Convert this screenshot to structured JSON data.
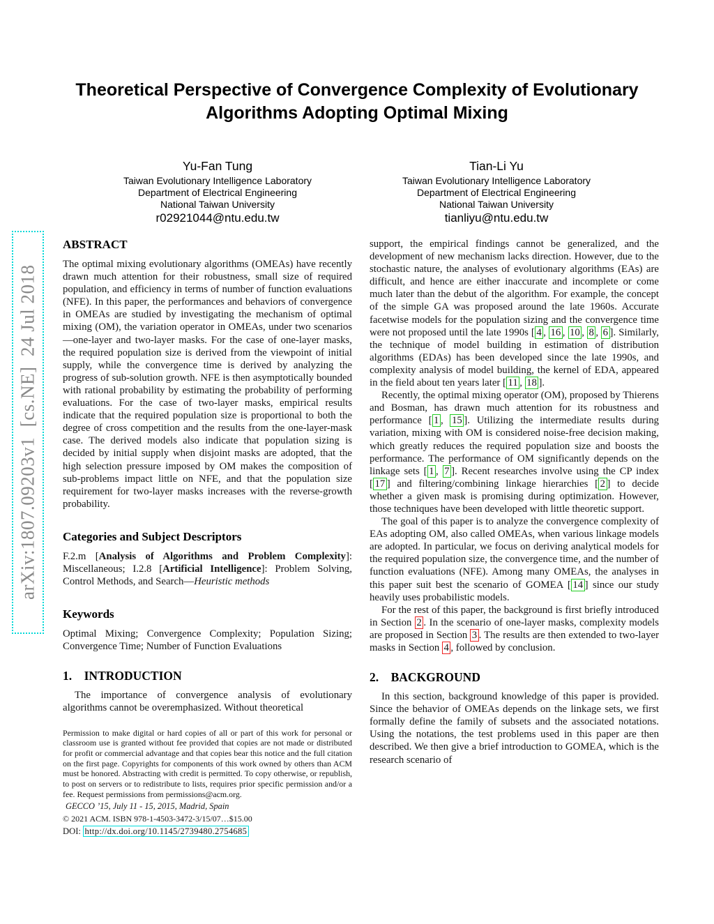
{
  "watermark": {
    "text": "arXiv:1807.09203v1  [cs.NE]  24 Jul 2018"
  },
  "title": "Theoretical Perspective of Convergence Complexity of Evolutionary Algorithms Adopting Optimal Mixing",
  "authors": [
    {
      "name": "Yu-Fan Tung",
      "affil1": "Taiwan Evolutionary Intelligence Laboratory",
      "affil2": "Department of Electrical Engineering",
      "affil3": "National Taiwan University",
      "email": "r02921044@ntu.edu.tw"
    },
    {
      "name": "Tian-Li Yu",
      "affil1": "Taiwan Evolutionary Intelligence Laboratory",
      "affil2": "Department of Electrical Engineering",
      "affil3": "National Taiwan University",
      "email": "tianliyu@ntu.edu.tw"
    }
  ],
  "left": {
    "abstract_heading": "ABSTRACT",
    "abstract": "The optimal mixing evolutionary algorithms (OMEAs) have recently drawn much attention for their robustness, small size of required population, and efficiency in terms of number of function evaluations (NFE). In this paper, the performances and behaviors of convergence in OMEAs are studied by investigating the mechanism of optimal mixing (OM), the variation operator in OMEAs, under two scenarios—one-layer and two-layer masks. For the case of one-layer masks, the required population size is derived from the viewpoint of initial supply, while the convergence time is derived by analyzing the progress of sub-solution growth. NFE is then asymptotically bounded with rational probability by estimating the probability of performing evaluations. For the case of two-layer masks, empirical results indicate that the required population size is proportional to both the degree of cross competition and the results from the one-layer-mask case. The derived models also indicate that population sizing is decided by initial supply when disjoint masks are adopted, that the high selection pressure imposed by OM makes the composition of sub-problems impact little on NFE, and that the population size requirement for two-layer masks increases with the reverse-growth probability.",
    "categories_heading": "Categories and Subject Descriptors",
    "categories": [
      {
        "t": "F.2.m ["
      },
      {
        "t": "Analysis of Algorithms and Problem Complexity",
        "s": "b"
      },
      {
        "t": "]: Miscellaneous; I.2.8 ["
      },
      {
        "t": "Artificial Intelligence",
        "s": "b"
      },
      {
        "t": "]: Problem Solving, Control Methods, and Search—"
      },
      {
        "t": "Heuristic methods",
        "s": "i"
      }
    ],
    "keywords_heading": "Keywords",
    "keywords": "Optimal Mixing; Convergence Complexity; Population Sizing; Convergence Time; Number of Function Evaluations",
    "intro_heading": "1.  INTRODUCTION",
    "intro_par": "The importance of convergence analysis of evolutionary algorithms cannot be overemphasized. Without theoretical"
  },
  "footnote": {
    "permission": "Permission to make digital or hard copies of all or part of this work for personal or classroom use is granted without fee provided that copies are not made or distributed for profit or commercial advantage and that copies bear this notice and the full citation on the first page. Copyrights for components of this work owned by others than ACM must be honored. Abstracting with credit is permitted. To copy otherwise, or republish, to post on servers or to redistribute to lists, requires prior specific permission and/or a fee. Request permissions from permissions@acm.org.",
    "conference": "GECCO ’15, July 11 - 15, 2015, Madrid, Spain",
    "copyright": "© 2021 ACM. ISBN 978-1-4503-3472-3/15/07…$15.00",
    "doi": [
      {
        "t": "DOI: "
      },
      {
        "t": "http://dx.doi.org/10.1145/2739480.2754685",
        "s": "url"
      }
    ]
  },
  "right": {
    "par1": [
      {
        "t": "support, the empirical findings cannot be generalized, and the development of new mechanism lacks direction. However, due to the stochastic nature, the analyses of evolutionary algorithms (EAs) are difficult, and hence are either inaccurate and incomplete or come much later than the debut of the algorithm. For example, the concept of the simple GA was proposed around the late 1960s. Accurate facetwise models for the population sizing and the convergence time were not proposed until the late 1990s ["
      },
      {
        "t": "4",
        "s": "cite"
      },
      {
        "t": ", "
      },
      {
        "t": "16",
        "s": "cite"
      },
      {
        "t": ", "
      },
      {
        "t": "10",
        "s": "cite"
      },
      {
        "t": ", "
      },
      {
        "t": "8",
        "s": "cite"
      },
      {
        "t": ", "
      },
      {
        "t": "6",
        "s": "cite"
      },
      {
        "t": "]. Similarly, the technique of model building in estimation of distribution algorithms (EDAs) has been developed since the late 1990s, and complexity analysis of model building, the kernel of EDA, appeared in the field about ten years later ["
      },
      {
        "t": "11",
        "s": "cite"
      },
      {
        "t": ", "
      },
      {
        "t": "18",
        "s": "cite"
      },
      {
        "t": "]."
      }
    ],
    "par2": [
      {
        "t": "Recently, the optimal mixing operator (OM), proposed by Thierens and Bosman, has drawn much attention for its robustness and performance ["
      },
      {
        "t": "1",
        "s": "cite"
      },
      {
        "t": ", "
      },
      {
        "t": "15",
        "s": "cite"
      },
      {
        "t": "]. Utilizing the intermediate results during variation, mixing with OM is considered noise-free decision making, which greatly reduces the required population size and boosts the performance. The performance of OM significantly depends on the linkage sets ["
      },
      {
        "t": "1",
        "s": "cite"
      },
      {
        "t": ", "
      },
      {
        "t": "7",
        "s": "cite"
      },
      {
        "t": "]. Recent researches involve using the CP index ["
      },
      {
        "t": "17",
        "s": "cite"
      },
      {
        "t": "] and filtering/combining linkage hierarchies ["
      },
      {
        "t": "2",
        "s": "cite"
      },
      {
        "t": "] to decide whether a given mask is promising during optimization. However, those techniques have been developed with little theoretic support."
      }
    ],
    "par3": [
      {
        "t": "The goal of this paper is to analyze the convergence complexity of EAs adopting OM, also called OMEAs, when various linkage models are adopted. In particular, we focus on deriving analytical models for the required population size, the convergence time, and the number of function evaluations (NFE). Among many OMEAs, the analyses in this paper suit best the scenario of GOMEA ["
      },
      {
        "t": "14",
        "s": "cite"
      },
      {
        "t": "] since our study heavily uses probabilistic models."
      }
    ],
    "par4": [
      {
        "t": "For the rest of this paper, the background is first briefly introduced in Section "
      },
      {
        "t": "2",
        "s": "secref"
      },
      {
        "t": ". In the scenario of one-layer masks, complexity models are proposed in Section "
      },
      {
        "t": "3",
        "s": "secref"
      },
      {
        "t": ". The results are then extended to two-layer masks in Section "
      },
      {
        "t": "4",
        "s": "secref"
      },
      {
        "t": ", followed by conclusion."
      }
    ],
    "background_heading": "2.  BACKGROUND",
    "background_par": "In this section, background knowledge of this paper is provided. Since the behavior of OMEAs depends on the linkage sets, we first formally define the family of subsets and the associated notations. Using the notations, the test problems used in this paper are then described. We then give a brief introduction to GOMEA, which is the research scenario of"
  },
  "colors": {
    "citation_box": "#22cc22",
    "section_ref_box": "#ee2222",
    "url_box": "#00dddd",
    "watermark_text": "#8a8a8a",
    "watermark_border": "#00d8d8"
  }
}
